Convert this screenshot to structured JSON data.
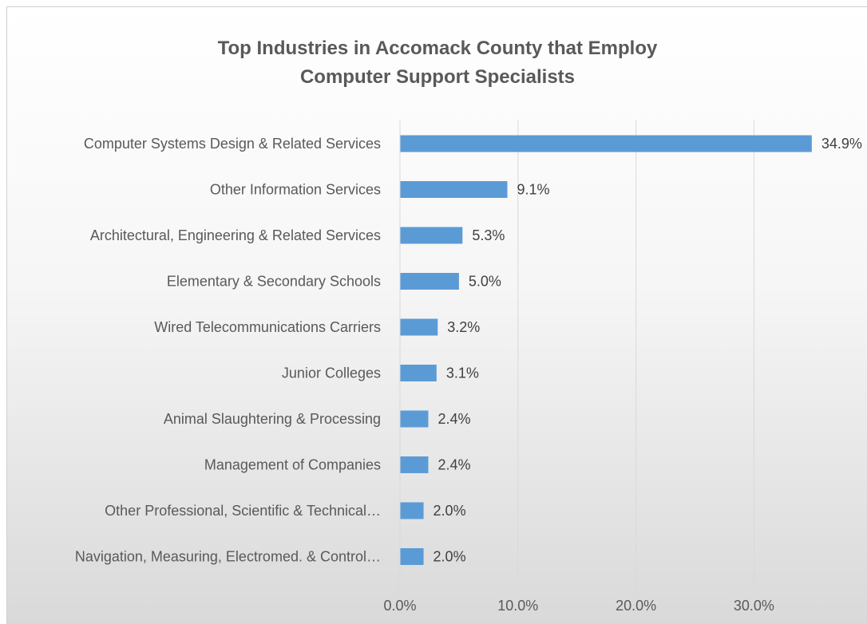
{
  "chart_data": {
    "type": "bar",
    "orientation": "horizontal",
    "title": "Top Industries in Accomack County that Employ Computer Support Specialists",
    "title_lines": [
      "Top Industries in Accomack County that Employ",
      "Computer Support Specialists"
    ],
    "categories": [
      "Computer Systems Design & Related Services",
      "Other Information Services",
      "Architectural, Engineering & Related Services",
      "Elementary & Secondary Schools",
      "Wired Telecommunications Carriers",
      "Junior Colleges",
      "Animal Slaughtering & Processing",
      "Management of Companies",
      "Other Professional, Scientific & Technical…",
      "Navigation, Measuring, Electromed. & Control…"
    ],
    "values": [
      34.9,
      9.1,
      5.3,
      5.0,
      3.2,
      3.1,
      2.4,
      2.4,
      2.0,
      2.0
    ],
    "value_labels": [
      "34.9%",
      "9.1%",
      "5.3%",
      "5.0%",
      "3.2%",
      "3.1%",
      "2.4%",
      "2.4%",
      "2.0%",
      "2.0%"
    ],
    "xticks": [
      0,
      10,
      20,
      30
    ],
    "xtick_labels": [
      "0.0%",
      "10.0%",
      "20.0%",
      "30.0%"
    ],
    "xlim": [
      0,
      40
    ],
    "xlabel": "",
    "ylabel": "",
    "grid": true,
    "legend": false,
    "bar_color": "#5b9bd5",
    "grid_color": "#d9d9d9"
  }
}
